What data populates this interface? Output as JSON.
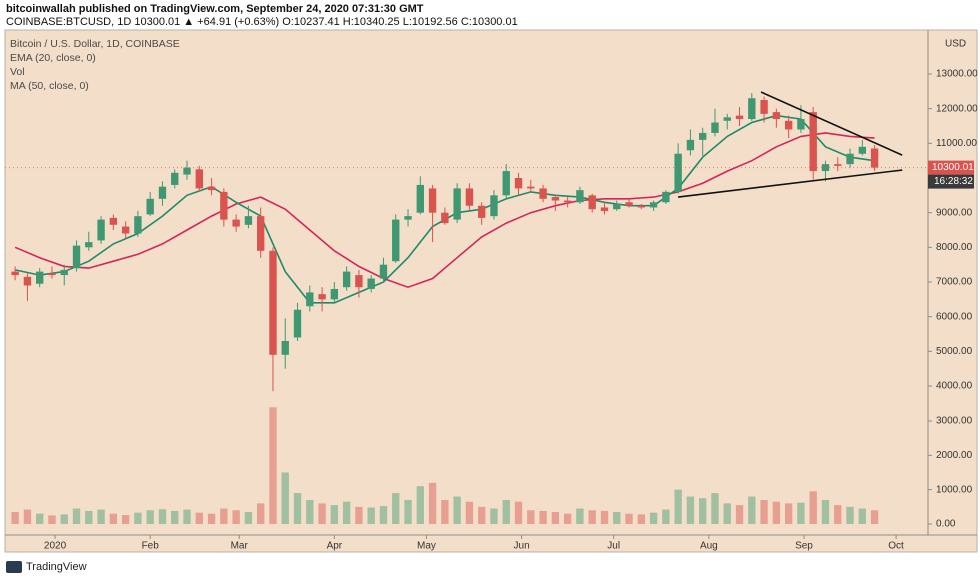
{
  "header": {
    "byline": "bitcoinwallah published on TradingView.com, September 24, 2020 07:31:30 GMT",
    "quote": "COINBASE:BTCUSD, 1D 10300.01 ▲ +64.91 (+0.63%) O:10237.41 H:10340.25 L:10192.56 C:10300.01"
  },
  "footer": {
    "brand": "TradingView"
  },
  "chart_data": {
    "type": "candlestick",
    "title": "Bitcoin / U.S. Dollar, 1D, COINBASE",
    "volume_label": "Vol",
    "unit": "USD",
    "up_color": "#3f9872",
    "down_color": "#d9534f",
    "x": [
      -13,
      -9,
      -5,
      -1,
      3,
      7,
      11,
      15,
      19,
      23,
      27,
      31,
      35,
      39,
      43,
      47,
      51,
      55,
      59,
      63,
      67,
      71,
      75,
      79,
      83,
      87,
      91,
      95,
      99,
      103,
      107,
      111,
      115,
      119,
      123,
      127,
      131,
      135,
      139,
      143,
      147,
      151,
      155,
      159,
      163,
      167,
      171,
      175,
      179,
      183,
      187,
      191,
      195,
      199,
      203,
      207,
      211,
      215,
      219,
      223,
      227,
      231,
      235,
      239,
      243,
      247,
      251,
      255,
      259,
      263,
      267
    ],
    "open": [
      7300,
      7150,
      6950,
      7250,
      7200,
      7400,
      8000,
      8200,
      8850,
      8600,
      8400,
      8950,
      9400,
      9800,
      10100,
      10250,
      9750,
      9600,
      8800,
      8650,
      8900,
      7900,
      4900,
      5400,
      6300,
      6650,
      6500,
      6850,
      7200,
      6800,
      7100,
      7600,
      8800,
      9000,
      9700,
      9000,
      8800,
      9700,
      9200,
      8900,
      9500,
      10000,
      9750,
      9700,
      9450,
      9350,
      9300,
      9500,
      9150,
      9100,
      9300,
      9200,
      9150,
      9300,
      9600,
      10800,
      11100,
      11300,
      11650,
      11800,
      11700,
      12250,
      11900,
      11650,
      11400,
      11900,
      10200,
      10400,
      10400,
      10700,
      10850
    ],
    "high": [
      7450,
      7250,
      7400,
      7450,
      7500,
      8200,
      8450,
      8900,
      8950,
      8750,
      9050,
      9600,
      9900,
      10250,
      10500,
      10350,
      10000,
      9700,
      8950,
      9200,
      9150,
      8000,
      5950,
      6400,
      6900,
      6850,
      7000,
      7450,
      7350,
      7200,
      7700,
      8950,
      9100,
      10050,
      9800,
      9150,
      9850,
      9850,
      9300,
      9650,
      10400,
      10150,
      9950,
      9800,
      9500,
      9450,
      9750,
      9550,
      9300,
      9350,
      9400,
      9250,
      9350,
      9650,
      11000,
      11400,
      11450,
      12000,
      11850,
      12050,
      12450,
      12350,
      12000,
      11800,
      12100,
      12050,
      10500,
      10600,
      10850,
      11100,
      10950
    ],
    "low": [
      7050,
      6450,
      6850,
      7100,
      6900,
      7300,
      7900,
      8100,
      8500,
      8250,
      8300,
      8900,
      9200,
      9700,
      9950,
      9600,
      9500,
      8600,
      8450,
      8550,
      7700,
      3850,
      4500,
      5300,
      6150,
      6150,
      6400,
      6750,
      6550,
      6700,
      7000,
      7550,
      8600,
      8950,
      8150,
      8650,
      8700,
      9050,
      8650,
      8800,
      9400,
      9500,
      9600,
      9300,
      9050,
      9150,
      9250,
      9000,
      8950,
      9050,
      9150,
      9100,
      9050,
      9250,
      9550,
      10650,
      10600,
      11200,
      11400,
      11500,
      11650,
      11600,
      11450,
      11150,
      11300,
      9950,
      9900,
      10200,
      10300,
      10650,
      10200
    ],
    "close": [
      7200,
      6900,
      7300,
      7200,
      7350,
      8050,
      8150,
      8800,
      8650,
      8400,
      8900,
      9400,
      9750,
      10150,
      10300,
      9700,
      9650,
      8800,
      8600,
      8900,
      7900,
      4900,
      5300,
      6200,
      6700,
      6500,
      6800,
      7300,
      6850,
      7100,
      7500,
      8800,
      8900,
      9800,
      9000,
      8700,
      9700,
      9200,
      8850,
      9500,
      10200,
      9700,
      9700,
      9400,
      9350,
      9300,
      9650,
      9100,
      9050,
      9250,
      9200,
      9150,
      9300,
      9600,
      10700,
      11100,
      11300,
      11600,
      11750,
      11700,
      12300,
      11850,
      11700,
      11400,
      11700,
      10200,
      10400,
      10350,
      10700,
      10900,
      10300
    ],
    "volume": [
      350,
      420,
      300,
      250,
      280,
      450,
      380,
      420,
      300,
      260,
      330,
      400,
      430,
      380,
      420,
      330,
      300,
      450,
      400,
      350,
      600,
      3400,
      1500,
      900,
      700,
      600,
      550,
      650,
      500,
      480,
      520,
      900,
      700,
      1100,
      1200,
      700,
      800,
      650,
      500,
      450,
      700,
      650,
      400,
      380,
      350,
      300,
      450,
      400,
      380,
      350,
      300,
      280,
      330,
      420,
      1000,
      800,
      750,
      900,
      600,
      550,
      800,
      700,
      650,
      600,
      620,
      950,
      700,
      550,
      500,
      450,
      400
    ],
    "ema": {
      "name": "EMA (20, close, 0)",
      "color": "#1f8a6a",
      "x": [
        -13,
        -5,
        3,
        11,
        19,
        27,
        35,
        43,
        51,
        59,
        67,
        75,
        83,
        91,
        99,
        107,
        115,
        123,
        131,
        139,
        147,
        155,
        163,
        171,
        179,
        187,
        195,
        203,
        211,
        219,
        227,
        235,
        243,
        251,
        259,
        267
      ],
      "values": [
        7350,
        7200,
        7300,
        7600,
        8100,
        8400,
        8900,
        9500,
        9750,
        9300,
        8900,
        7300,
        6400,
        6400,
        6700,
        7000,
        7700,
        8600,
        9000,
        9100,
        9400,
        9600,
        9500,
        9450,
        9300,
        9200,
        9200,
        9700,
        10600,
        11200,
        11600,
        11800,
        11700,
        10900,
        10600,
        10500
      ]
    },
    "ma": {
      "name": "MA (50, close, 0)",
      "color": "#d6245a",
      "x": [
        -13,
        -5,
        3,
        11,
        19,
        27,
        35,
        43,
        51,
        59,
        67,
        75,
        83,
        91,
        99,
        107,
        115,
        123,
        131,
        139,
        147,
        155,
        163,
        171,
        179,
        187,
        195,
        203,
        211,
        219,
        227,
        235,
        243,
        251,
        259,
        267
      ],
      "values": [
        8000,
        7700,
        7450,
        7400,
        7600,
        7800,
        8100,
        8500,
        8900,
        9250,
        9450,
        9100,
        8500,
        7900,
        7450,
        7100,
        6850,
        7100,
        7700,
        8300,
        8700,
        9000,
        9200,
        9350,
        9400,
        9400,
        9450,
        9600,
        9850,
        10200,
        10500,
        10900,
        11200,
        11300,
        11200,
        11150
      ]
    },
    "trendlines": [
      {
        "x": [
          230,
          276
        ],
        "values": [
          12480,
          10660
        ]
      },
      {
        "x": [
          203,
          276
        ],
        "values": [
          9450,
          10230
        ]
      }
    ],
    "last_price": 10300.01,
    "countdown": "16:28:32",
    "xlim": [
      -16.3,
      284.4
    ],
    "xticks": [
      {
        "value": 0,
        "label": "2020"
      },
      {
        "value": 31,
        "label": "Feb"
      },
      {
        "value": 60,
        "label": "Mar"
      },
      {
        "value": 91,
        "label": "Apr"
      },
      {
        "value": 121,
        "label": "May"
      },
      {
        "value": 152,
        "label": "Jun"
      },
      {
        "value": 182,
        "label": "Jul"
      },
      {
        "value": 213,
        "label": "Aug"
      },
      {
        "value": 244,
        "label": "Sep"
      },
      {
        "value": 274,
        "label": "Oct"
      }
    ],
    "ylim": [
      -153,
      14269
    ],
    "yticks": [
      {
        "value": 4000,
        "label": "4000.00"
      },
      {
        "value": 5000,
        "label": "5000.00"
      },
      {
        "value": 6000,
        "label": "6000.00"
      },
      {
        "value": 7000,
        "label": "7000.00"
      },
      {
        "value": 8000,
        "label": "8000.00"
      },
      {
        "value": 9000,
        "label": "9000.00"
      },
      {
        "value": 11000,
        "label": "11000.00"
      },
      {
        "value": 12000,
        "label": "12000.00"
      },
      {
        "value": 13000,
        "label": "13000.00"
      }
    ],
    "y2lim": [
      -175,
      14388
    ],
    "y2ticks": [
      {
        "value": 0,
        "label": "0.00"
      },
      {
        "value": 1000,
        "label": "1000.00"
      },
      {
        "value": 2000,
        "label": "2000.00"
      },
      {
        "value": 3000,
        "label": "3000.00"
      }
    ]
  }
}
